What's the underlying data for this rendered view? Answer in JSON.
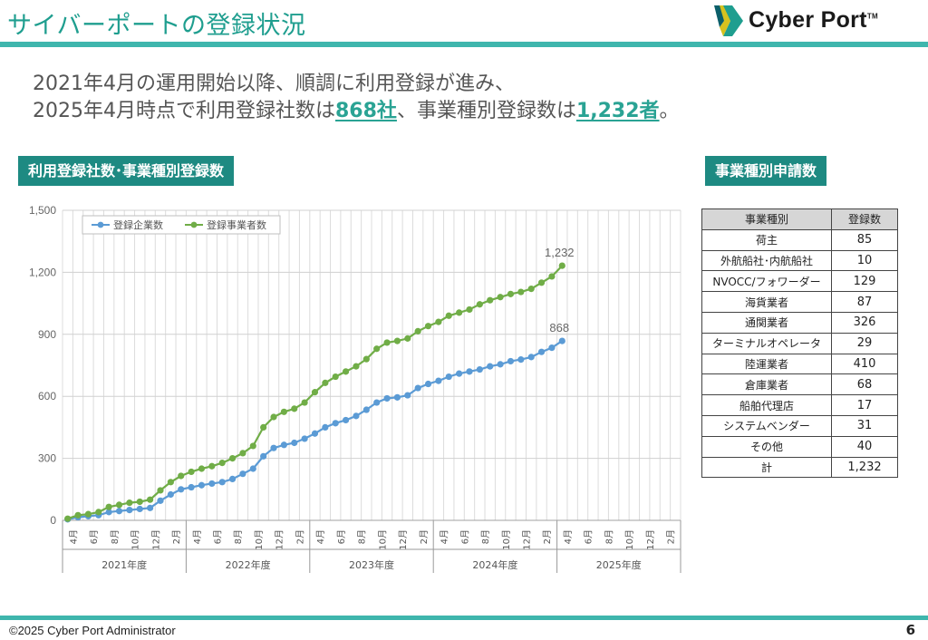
{
  "title": "サイバーポートの登録状況",
  "logo": {
    "text": "Cyber Port",
    "tm": "TM"
  },
  "lead": {
    "line1": "2021年4月の運用開始以降、順調に利用登録が進み、",
    "line2_a": "2025年4月時点で利用登録社数は",
    "companies": "868社",
    "line2_b": "、事業種別登録数は",
    "registrations": "1,232者",
    "line2_c": "。"
  },
  "section_chart_title": "利用登録社数･事業種別登録数",
  "section_table_title": "事業種別申請数",
  "colors": {
    "accent": "#1e8a82",
    "rule": "#3fb6ad",
    "companies": "#5b9bd5",
    "registrations": "#70ad47"
  },
  "chart_data": {
    "type": "line",
    "y_ticks": [
      "0",
      "300",
      "600",
      "900",
      "1,200",
      "1,500"
    ],
    "ylim": [
      0,
      1500
    ],
    "x_tick_labels": [
      "4月",
      "6月",
      "8月",
      "10月",
      "12月",
      "2月",
      "4月",
      "6月",
      "8月",
      "10月",
      "12月",
      "2月",
      "4月",
      "6月",
      "8月",
      "10月",
      "12月",
      "2月",
      "4月",
      "6月",
      "8月",
      "10月",
      "12月",
      "2月",
      "4月",
      "6月",
      "8月",
      "10月",
      "12月",
      "2月"
    ],
    "year_groups": [
      "2021年度",
      "2022年度",
      "2023年度",
      "2024年度",
      "2025年度"
    ],
    "grid": true,
    "legend_position": "top-left",
    "series": [
      {
        "name": "登録企業数",
        "color": "#5b9bd5",
        "end_label": "868",
        "values": [
          5,
          15,
          20,
          25,
          40,
          45,
          50,
          55,
          60,
          95,
          125,
          150,
          160,
          170,
          178,
          185,
          200,
          225,
          250,
          310,
          350,
          365,
          375,
          395,
          420,
          450,
          470,
          485,
          505,
          535,
          570,
          590,
          595,
          605,
          640,
          660,
          675,
          695,
          710,
          720,
          730,
          745,
          755,
          770,
          778,
          790,
          815,
          835,
          868
        ]
      },
      {
        "name": "登録事業者数",
        "color": "#70ad47",
        "end_label": "1,232",
        "values": [
          8,
          25,
          30,
          40,
          65,
          75,
          85,
          90,
          100,
          145,
          185,
          215,
          235,
          250,
          262,
          278,
          300,
          325,
          360,
          450,
          500,
          525,
          540,
          570,
          620,
          665,
          695,
          720,
          745,
          780,
          830,
          860,
          868,
          880,
          915,
          940,
          960,
          990,
          1005,
          1020,
          1045,
          1065,
          1080,
          1095,
          1105,
          1120,
          1150,
          1180,
          1232
        ]
      }
    ]
  },
  "table": {
    "headers": [
      "事業種別",
      "登録数"
    ],
    "rows": [
      [
        "荷主",
        "85"
      ],
      [
        "外航船社･内航船社",
        "10"
      ],
      [
        "NVOCC/フォワーダー",
        "129"
      ],
      [
        "海貨業者",
        "87"
      ],
      [
        "通関業者",
        "326"
      ],
      [
        "ターミナルオペレータ",
        "29"
      ],
      [
        "陸運業者",
        "410"
      ],
      [
        "倉庫業者",
        "68"
      ],
      [
        "船舶代理店",
        "17"
      ],
      [
        "システムベンダー",
        "31"
      ],
      [
        "その他",
        "40"
      ],
      [
        "計",
        "1,232"
      ]
    ]
  },
  "footer": "©2025 Cyber Port Administrator",
  "page_number": "6"
}
